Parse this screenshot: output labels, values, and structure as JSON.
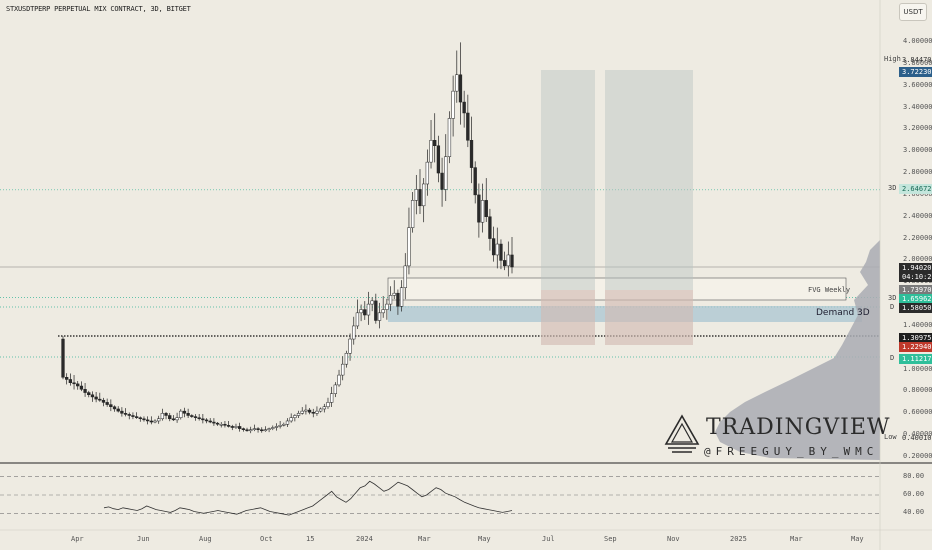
{
  "header": {
    "title": "STXUSDTPERP PERPETUAL MIX CONTRACT, 3D, BITGET",
    "currency_button": "USDT"
  },
  "colors": {
    "bg": "#eeebe2",
    "up": "#ffffff",
    "down": "#2a2a2a",
    "hl_green": "#2fbf9a",
    "hl_blue": "#2c5f8a",
    "hl_red": "#c0392b",
    "zone_blue": "#aac5d2",
    "zone_grey": "#b8c4c2",
    "zone_red": "#e8b4a8",
    "volume_profile": "#a9acb3"
  },
  "price_axis": {
    "ticks": [
      "4.00000",
      "3.80000",
      "3.60000",
      "3.40000",
      "3.20000",
      "3.00000",
      "2.80000",
      "2.60000",
      "2.40000",
      "2.20000",
      "2.00000",
      "1.80000",
      "1.60000",
      "1.40000",
      "1.20000",
      "1.00000",
      "0.80000",
      "0.60000",
      "0.40000",
      "0.20000"
    ]
  },
  "markers": {
    "high": {
      "label": "High",
      "value": "3.84470"
    },
    "blue_level": {
      "value": "3.72230"
    },
    "level_3d_top": {
      "label": "3D",
      "value": "2.64672"
    },
    "last_price": {
      "value": "1.94020",
      "countdown": "04:10:26"
    },
    "grey_level": {
      "value": "1.73970"
    },
    "level_3d_mid": {
      "label": "3D",
      "value": "1.65962"
    },
    "level_d_mid": {
      "label": "D",
      "value": "1.58050"
    },
    "black_level": {
      "value": "1.30975"
    },
    "red_level": {
      "value": "1.22940"
    },
    "level_d_low": {
      "label": "D",
      "value": "1.11217"
    },
    "low": {
      "label": "Low",
      "value": "0.40010"
    }
  },
  "annotations": {
    "fvg": "FVG Weekly",
    "demand": "Demand 3D"
  },
  "rsi_axis": {
    "ticks": [
      "80.00",
      "60.00",
      "40.00"
    ]
  },
  "time_axis": {
    "labels": [
      "Apr",
      "Jun",
      "Aug",
      "Oct",
      "15",
      "2024",
      "Mar",
      "May",
      "Jul",
      "Sep",
      "Nov",
      "2025",
      "Mar",
      "May"
    ]
  },
  "watermark": {
    "brand": "TRADINGVIEW",
    "handle": "@FREEGUY_BY_WMC"
  },
  "chart_data": {
    "type": "candlestick",
    "title": "STXUSDTPERP PERPETUAL MIX CONTRACT, 3D, BITGET",
    "ylim": [
      0.2,
      4.2
    ],
    "ohlc_close": [
      0.93,
      0.91,
      0.88,
      0.87,
      0.85,
      0.82,
      0.79,
      0.77,
      0.75,
      0.73,
      0.72,
      0.7,
      0.68,
      0.66,
      0.64,
      0.62,
      0.6,
      0.59,
      0.58,
      0.57,
      0.56,
      0.55,
      0.54,
      0.53,
      0.52,
      0.53,
      0.55,
      0.6,
      0.58,
      0.55,
      0.54,
      0.56,
      0.62,
      0.6,
      0.58,
      0.57,
      0.56,
      0.55,
      0.54,
      0.53,
      0.52,
      0.51,
      0.5,
      0.5,
      0.49,
      0.48,
      0.47,
      0.48,
      0.46,
      0.45,
      0.44,
      0.45,
      0.46,
      0.45,
      0.44,
      0.45,
      0.46,
      0.47,
      0.48,
      0.49,
      0.5,
      0.53,
      0.56,
      0.58,
      0.6,
      0.62,
      0.63,
      0.61,
      0.6,
      0.62,
      0.64,
      0.66,
      0.7,
      0.78,
      0.86,
      0.95,
      1.05,
      1.15,
      1.28,
      1.4,
      1.52,
      1.55,
      1.5,
      1.6,
      1.63,
      1.45,
      1.52,
      1.55,
      1.6,
      1.68,
      1.7,
      1.58,
      1.75,
      1.95,
      2.3,
      2.55,
      2.65,
      2.5,
      2.7,
      2.9,
      3.1,
      3.05,
      2.8,
      2.65,
      2.95,
      3.3,
      3.55,
      3.7,
      3.45,
      3.35,
      3.1,
      2.85,
      2.6,
      2.35,
      2.55,
      2.4,
      2.2,
      2.05,
      2.15,
      2.0,
      1.95,
      2.05,
      1.94
    ],
    "levels": {
      "high": 3.8447,
      "low": 0.4001,
      "last": 1.9402,
      "d_level_top": 2.64672,
      "level_3d": 1.65962,
      "level_d": 1.5805,
      "level_black": 1.30975,
      "level_d_low": 1.11217
    },
    "fvg_weekly": [
      1.66,
      1.8
    ],
    "demand_3d": [
      1.42,
      1.58
    ],
    "rsi": {
      "ylim": [
        25,
        95
      ],
      "levels": [
        80,
        60,
        40
      ]
    }
  }
}
